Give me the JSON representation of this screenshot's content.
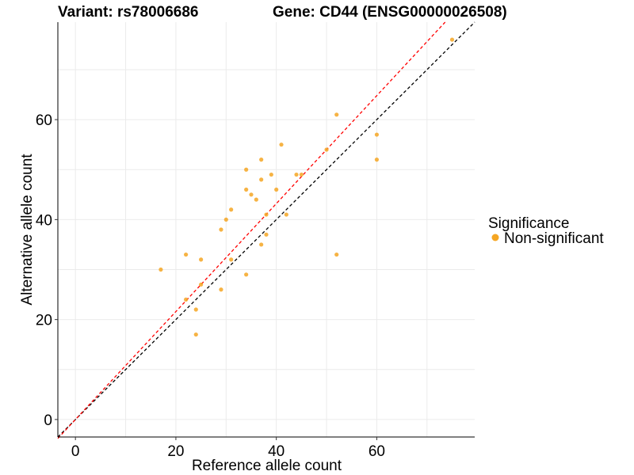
{
  "title_left": "Variant: rs78006686",
  "title_right": "Gene: CD44 (ENSG00000026508)",
  "legend": {
    "title": "Significance",
    "items": [
      {
        "label": "Non-significant",
        "color": "#f5a623"
      }
    ]
  },
  "colors": {
    "point": "#f5a623",
    "diagonal": "#000000",
    "fit": "#ff0000",
    "grid": "#ebebeb"
  },
  "chart_data": {
    "type": "scatter",
    "xlabel": "Reference allele count",
    "ylabel": "Alternative allele count",
    "xlim": [
      -3.5,
      79.5
    ],
    "ylim": [
      -3.5,
      79.5
    ],
    "x_ticks": [
      0,
      20,
      40,
      60
    ],
    "y_ticks": [
      0,
      20,
      40,
      60
    ],
    "grid": true,
    "legend_position": "right",
    "series": [
      {
        "name": "Non-significant",
        "points": [
          {
            "x": 17,
            "y": 30
          },
          {
            "x": 22,
            "y": 33
          },
          {
            "x": 22,
            "y": 24
          },
          {
            "x": 24,
            "y": 22
          },
          {
            "x": 24,
            "y": 17
          },
          {
            "x": 25,
            "y": 32
          },
          {
            "x": 25,
            "y": 27
          },
          {
            "x": 29,
            "y": 38
          },
          {
            "x": 29,
            "y": 26
          },
          {
            "x": 30,
            "y": 40
          },
          {
            "x": 31,
            "y": 42
          },
          {
            "x": 31,
            "y": 32
          },
          {
            "x": 34,
            "y": 50
          },
          {
            "x": 34,
            "y": 46
          },
          {
            "x": 34,
            "y": 29
          },
          {
            "x": 35,
            "y": 45
          },
          {
            "x": 36,
            "y": 44
          },
          {
            "x": 37,
            "y": 52
          },
          {
            "x": 37,
            "y": 48
          },
          {
            "x": 37,
            "y": 35
          },
          {
            "x": 38,
            "y": 41
          },
          {
            "x": 38,
            "y": 37
          },
          {
            "x": 39,
            "y": 49
          },
          {
            "x": 40,
            "y": 46
          },
          {
            "x": 41,
            "y": 55
          },
          {
            "x": 42,
            "y": 41
          },
          {
            "x": 44,
            "y": 49
          },
          {
            "x": 45,
            "y": 49
          },
          {
            "x": 50,
            "y": 54
          },
          {
            "x": 52,
            "y": 61
          },
          {
            "x": 52,
            "y": 33
          },
          {
            "x": 60,
            "y": 57
          },
          {
            "x": 60,
            "y": 52
          },
          {
            "x": 75,
            "y": 76
          }
        ]
      }
    ],
    "lines": [
      {
        "name": "identity",
        "style": "dashed",
        "color": "#000000",
        "slope": 1.0,
        "intercept": 0
      },
      {
        "name": "fit",
        "style": "dashed",
        "color": "#ff0000",
        "slope": 1.08,
        "intercept": 0
      }
    ]
  }
}
